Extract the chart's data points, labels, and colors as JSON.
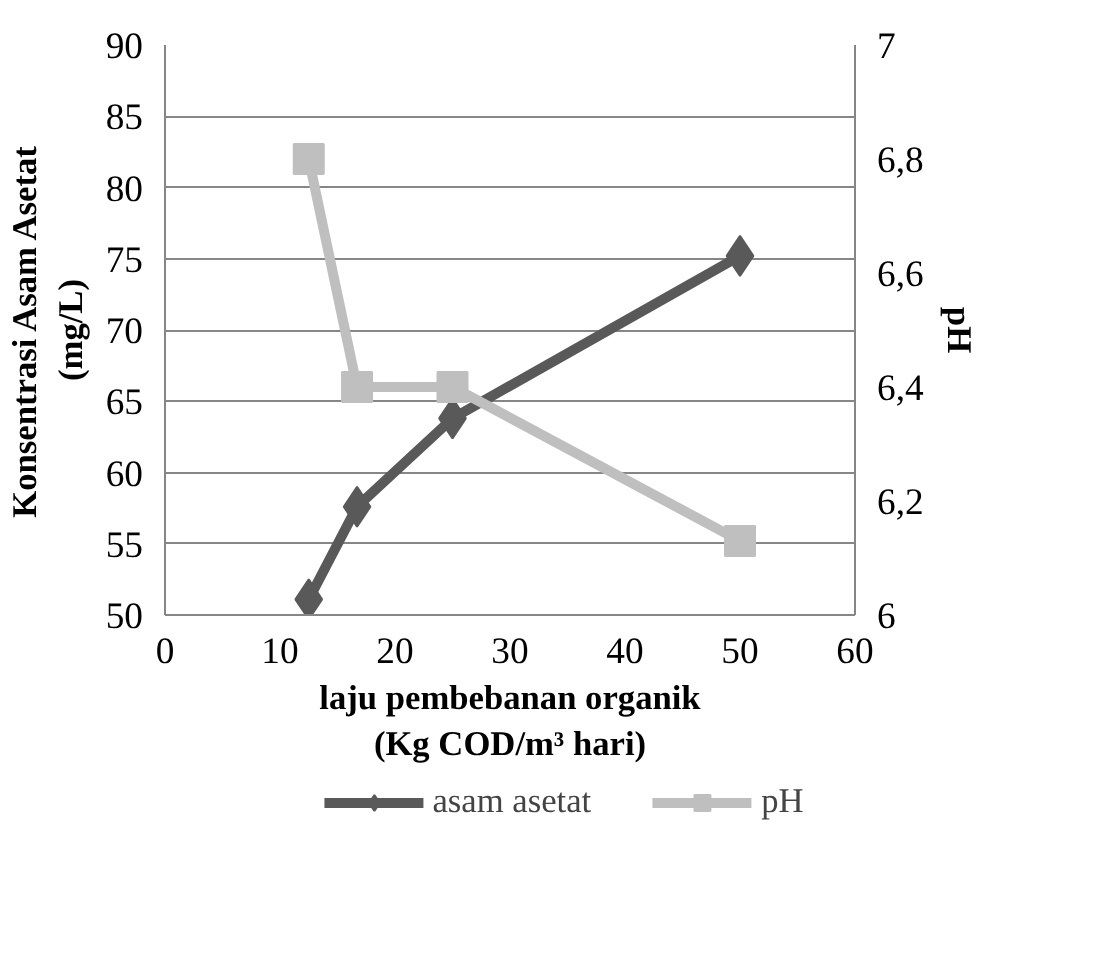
{
  "chart_data": {
    "type": "line",
    "xlabel": "laju pembebanan organik\n(Kg COD/m³ hari)",
    "ylabel": "Konsentrasi Asam Asetat\n(mg/L)",
    "y2label": "pH",
    "x": [
      12.5,
      16.7,
      25,
      50
    ],
    "series": [
      {
        "name": "asam asetat",
        "color": "#595959",
        "marker": "diamond",
        "values": [
          51.1,
          57.6,
          63.8,
          75.2
        ]
      },
      {
        "name": "pH",
        "color": "#bfbfbf",
        "marker": "square",
        "axis": "y2",
        "values": [
          6.8,
          6.4,
          6.4,
          6.13
        ]
      }
    ],
    "xlim": [
      0,
      60
    ],
    "xticks": [
      0,
      10,
      20,
      30,
      40,
      50,
      60
    ],
    "ylim": [
      50,
      90
    ],
    "yticks": [
      50,
      55,
      60,
      65,
      70,
      75,
      80,
      85,
      90
    ],
    "y2lim": [
      6,
      7
    ],
    "y2ticks": [
      6,
      {
        "value": 6.2,
        "label": "6,2"
      },
      {
        "value": 6.4,
        "label": "6,4"
      },
      {
        "value": 6.6,
        "label": "6,6"
      },
      {
        "value": 6.8,
        "label": "6,8"
      },
      7
    ],
    "grid": "y",
    "legend": "bottom",
    "line_style": "solid"
  }
}
